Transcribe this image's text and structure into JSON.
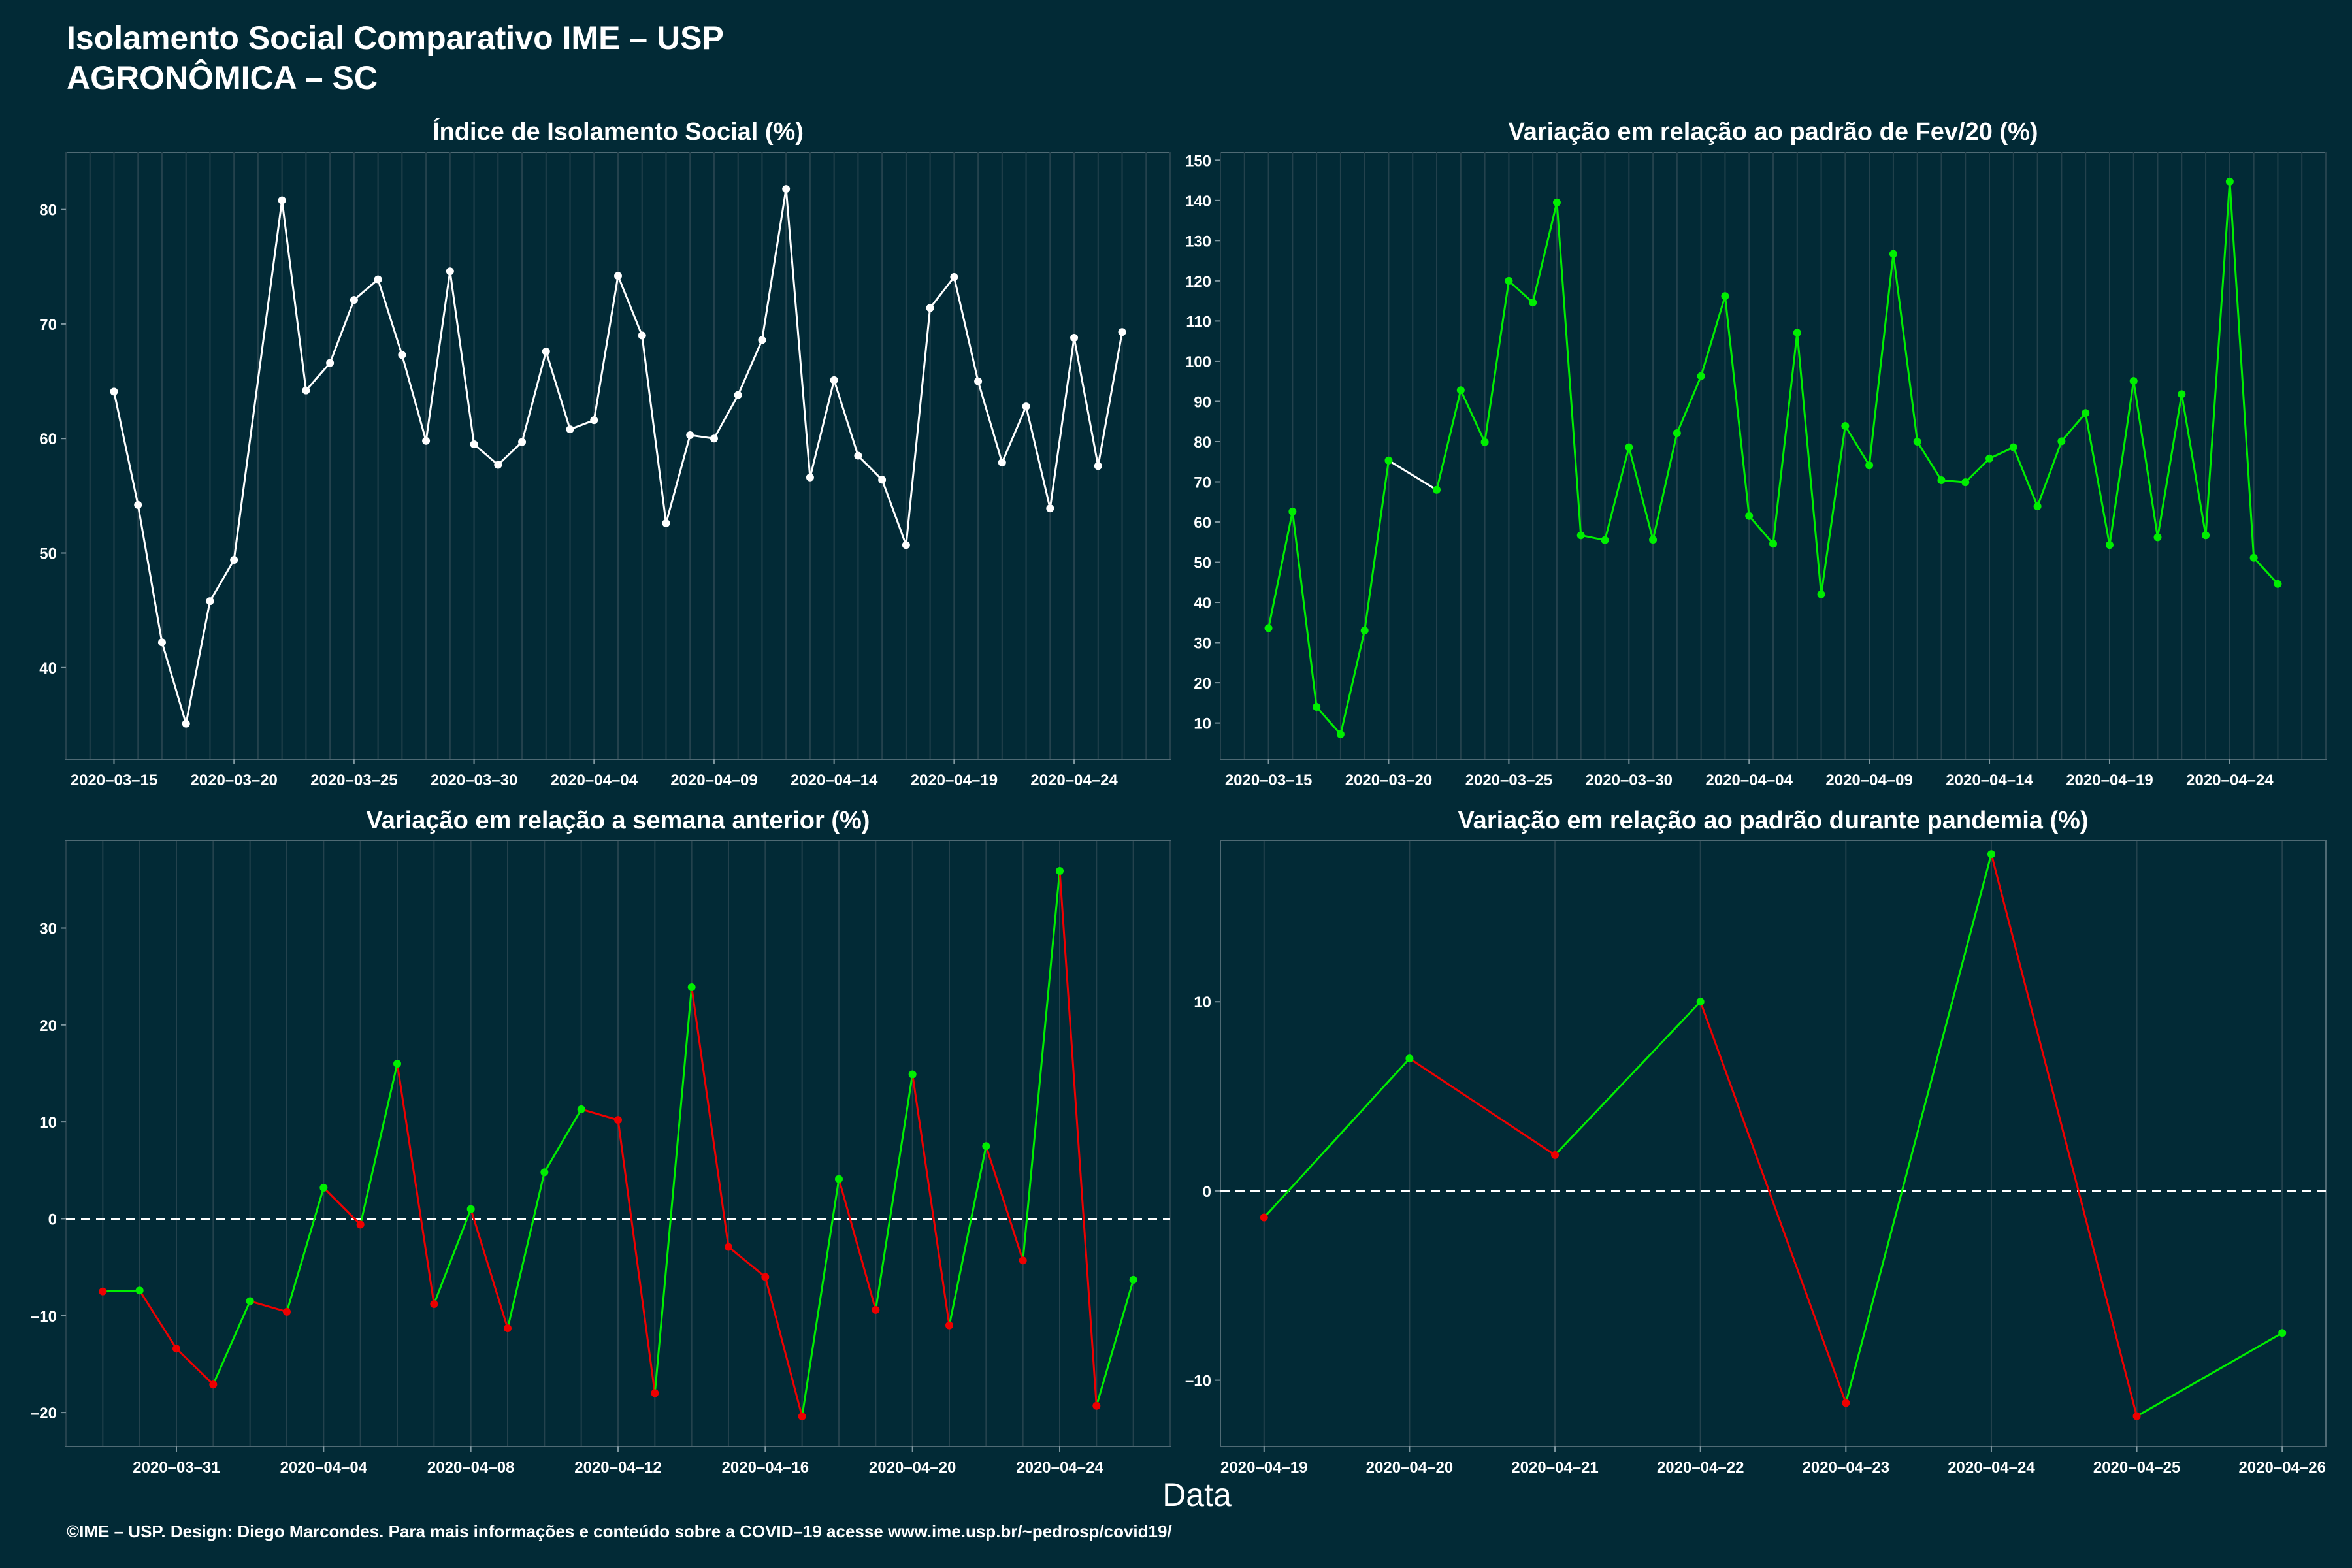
{
  "title_line1": "Isolamento Social Comparativo IME – USP",
  "title_line2": "AGRONÔMICA – SC",
  "xlabel": "Data",
  "footer": "©IME – USP. Design: Diego Marcondes. Para mais informações e conteúdo sobre a COVID–19 acesse www.ime.usp.br/~pedrosp/covid19/",
  "colors": {
    "background": "#022a36",
    "white": "#ffffff",
    "green": "#00ee00",
    "red": "#ee0000",
    "grid": "#24424d"
  },
  "chart_data": [
    {
      "id": "isolation-index",
      "type": "line",
      "title": "Índice de Isolamento Social (%)",
      "x_start": "2020-03-15",
      "x": [
        "2020-03-15",
        "2020-03-16",
        "2020-03-17",
        "2020-03-18",
        "2020-03-19",
        "2020-03-20",
        "2020-03-21",
        "2020-03-22",
        "2020-03-23",
        "2020-03-24",
        "2020-03-25",
        "2020-03-26",
        "2020-03-27",
        "2020-03-28",
        "2020-03-29",
        "2020-03-30",
        "2020-03-31",
        "2020-04-01",
        "2020-04-02",
        "2020-04-03",
        "2020-04-04",
        "2020-04-05",
        "2020-04-06",
        "2020-04-07",
        "2020-04-08",
        "2020-04-09",
        "2020-04-10",
        "2020-04-11",
        "2020-04-12",
        "2020-04-13",
        "2020-04-14",
        "2020-04-15",
        "2020-04-16",
        "2020-04-17",
        "2020-04-18",
        "2020-04-19",
        "2020-04-20",
        "2020-04-21",
        "2020-04-22",
        "2020-04-23",
        "2020-04-24",
        "2020-04-25",
        "2020-04-26"
      ],
      "values": [
        64.1,
        54.2,
        42.2,
        35.1,
        45.8,
        49.4,
        null,
        80.8,
        64.2,
        66.6,
        72.1,
        73.9,
        67.3,
        59.8,
        74.6,
        59.5,
        57.7,
        59.7,
        67.6,
        60.8,
        61.6,
        74.2,
        69.0,
        52.6,
        60.3,
        60.0,
        63.8,
        68.6,
        81.8,
        56.6,
        65.1,
        58.5,
        56.4,
        50.7,
        71.4,
        74.1,
        65.0,
        57.9,
        62.8,
        53.9,
        68.8,
        57.6,
        69.3
      ],
      "line_color": "white",
      "x_tick_labels": [
        "2020–03–15",
        "2020–03–20",
        "2020–03–25",
        "2020–03–30",
        "2020–04–04",
        "2020–04–09",
        "2020–04–14",
        "2020–04–19",
        "2020–04–24"
      ],
      "y_ticks": [
        "40",
        "50",
        "60",
        "70",
        "80"
      ],
      "xlim": [
        "2020-03-13",
        "2020-04-28"
      ],
      "ylim": [
        32,
        85
      ]
    },
    {
      "id": "variation-feb",
      "type": "line",
      "title": "Variação em relação ao padrão de Fev/20 (%)",
      "x": [
        "2020-03-15",
        "2020-03-16",
        "2020-03-17",
        "2020-03-18",
        "2020-03-19",
        "2020-03-20",
        "2020-03-21",
        "2020-03-22",
        "2020-03-23",
        "2020-03-24",
        "2020-03-25",
        "2020-03-26",
        "2020-03-27",
        "2020-03-28",
        "2020-03-29",
        "2020-03-30",
        "2020-03-31",
        "2020-04-01",
        "2020-04-02",
        "2020-04-03",
        "2020-04-04",
        "2020-04-05",
        "2020-04-06",
        "2020-04-07",
        "2020-04-08",
        "2020-04-09",
        "2020-04-10",
        "2020-04-11",
        "2020-04-12",
        "2020-04-13",
        "2020-04-14",
        "2020-04-15",
        "2020-04-16",
        "2020-04-17",
        "2020-04-18",
        "2020-04-19",
        "2020-04-20",
        "2020-04-21",
        "2020-04-22",
        "2020-04-23",
        "2020-04-24",
        "2020-04-25",
        "2020-04-26"
      ],
      "values": [
        33.6,
        62.6,
        14.0,
        7.2,
        33.0,
        75.3,
        null,
        68.0,
        92.8,
        79.9,
        120.0,
        114.6,
        139.5,
        56.7,
        55.5,
        78.6,
        55.6,
        82.1,
        96.3,
        116.2,
        61.5,
        54.6,
        107.1,
        42.0,
        83.9,
        74.1,
        126.7,
        80.0,
        70.4,
        69.9,
        75.8,
        78.6,
        63.9,
        80.1,
        87.1,
        54.3,
        95.1,
        56.2,
        91.8,
        56.7,
        144.7,
        51.1,
        44.6
      ],
      "line_color": "green",
      "segment_colors": [
        "green",
        "green",
        "green",
        "green",
        "green",
        "white",
        "white",
        "green",
        "green",
        "green",
        "green",
        "green",
        "green",
        "green",
        "green",
        "green",
        "green",
        "green",
        "green",
        "green",
        "green",
        "green",
        "green",
        "green",
        "green",
        "green",
        "green",
        "green",
        "green",
        "green",
        "green",
        "green",
        "green",
        "green",
        "green",
        "green",
        "green",
        "green",
        "green",
        "green",
        "green",
        "green"
      ],
      "x_tick_labels": [
        "2020–03–15",
        "2020–03–20",
        "2020–03–25",
        "2020–03–30",
        "2020–04–04",
        "2020–04–09",
        "2020–04–14",
        "2020–04–19",
        "2020–04–24"
      ],
      "y_ticks": [
        "10",
        "20",
        "30",
        "40",
        "50",
        "60",
        "70",
        "80",
        "90",
        "100",
        "110",
        "120",
        "130",
        "140",
        "150"
      ],
      "xlim": [
        "2020-03-13",
        "2020-04-28"
      ],
      "ylim": [
        1,
        152
      ]
    },
    {
      "id": "variation-week",
      "type": "line",
      "title": "Variação em relação a semana anterior (%)",
      "x": [
        "2020-03-29",
        "2020-03-30",
        "2020-03-31",
        "2020-04-01",
        "2020-04-02",
        "2020-04-03",
        "2020-04-04",
        "2020-04-05",
        "2020-04-06",
        "2020-04-07",
        "2020-04-08",
        "2020-04-09",
        "2020-04-10",
        "2020-04-11",
        "2020-04-12",
        "2020-04-13",
        "2020-04-14",
        "2020-04-15",
        "2020-04-16",
        "2020-04-17",
        "2020-04-18",
        "2020-04-19",
        "2020-04-20",
        "2020-04-21",
        "2020-04-22",
        "2020-04-23",
        "2020-04-24",
        "2020-04-25",
        "2020-04-26"
      ],
      "values": [
        -7.5,
        -7.4,
        -13.4,
        -17.1,
        -8.5,
        -9.6,
        3.2,
        -0.6,
        16.0,
        -8.8,
        1.0,
        -11.3,
        4.8,
        11.3,
        10.2,
        -18.0,
        23.9,
        -2.9,
        -6.0,
        -20.4,
        4.1,
        -9.4,
        14.9,
        -11.0,
        7.5,
        -4.3,
        35.9,
        -19.3,
        -6.3
      ],
      "color_rule": "green if increasing, red if decreasing",
      "reference_line": 0,
      "x_tick_labels": [
        "2020–03–31",
        "2020–04–04",
        "2020–04–08",
        "2020–04–12",
        "2020–04–16",
        "2020–04–20",
        "2020–04–24"
      ],
      "y_ticks": [
        "–20",
        "–10",
        "0",
        "10",
        "20",
        "30"
      ],
      "xlim": [
        "2020-03-28",
        "2020-04-27"
      ],
      "ylim": [
        -23.5,
        39
      ]
    },
    {
      "id": "variation-pandemic",
      "type": "line",
      "title": "Variação em relação ao padrão durante pandemia (%)",
      "x": [
        "2020-04-19",
        "2020-04-20",
        "2020-04-21",
        "2020-04-22",
        "2020-04-23",
        "2020-04-24",
        "2020-04-25",
        "2020-04-26"
      ],
      "values": [
        -1.4,
        7.0,
        1.9,
        10.0,
        -11.2,
        17.8,
        -11.9,
        -7.5
      ],
      "color_rule": "green if increasing, red if decreasing",
      "reference_line": 0,
      "x_tick_labels": [
        "2020–04–19",
        "2020–04–20",
        "2020–04–21",
        "2020–04–22",
        "2020–04–23",
        "2020–04–24",
        "2020–04–25",
        "2020–04–26"
      ],
      "y_ticks": [
        "–10",
        "0",
        "10"
      ],
      "xlim": [
        "2020-04-18.7",
        "2020-04-26.3"
      ],
      "ylim": [
        -13.5,
        18.5
      ]
    }
  ]
}
